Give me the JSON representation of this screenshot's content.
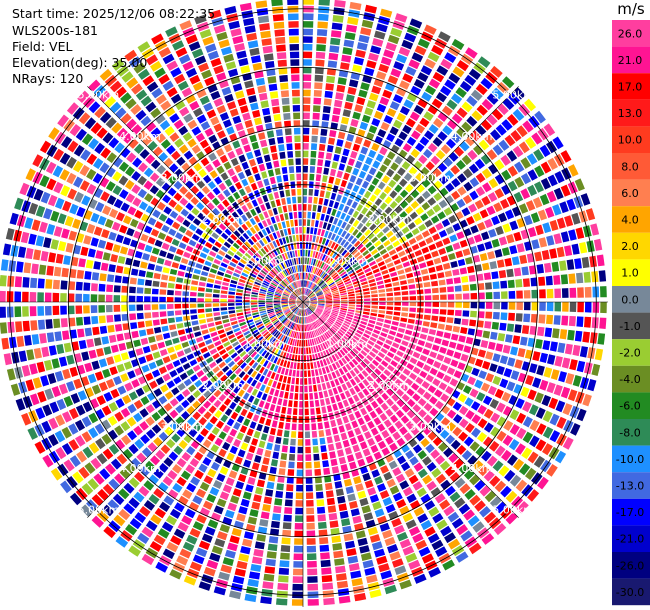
{
  "header": {
    "start_time": "Start time: 2025/12/06 08:22:35",
    "station": "WLS200s-181",
    "field": "Field: VEL",
    "elevation": "Elevation(deg): 35.00",
    "nrays": "NRays: 120"
  },
  "colorbar": {
    "unit": "m/s",
    "ticks": [
      "26.0",
      "21.0",
      "17.0",
      "13.0",
      "10.0",
      "8.0",
      "6.0",
      "4.0",
      "2.0",
      "1.0",
      "0.0",
      "-1.0",
      "-2.0",
      "-4.0",
      "-6.0",
      "-8.0",
      "-10.0",
      "-13.0",
      "-17.0",
      "-21.0",
      "-26.0",
      "-30.0"
    ],
    "colors": [
      "#ff3e9f",
      "#ff1493",
      "#ff0000",
      "#ff1a1a",
      "#ff3b1f",
      "#ff5a36",
      "#ff7f50",
      "#ffa500",
      "#ffd700",
      "#ffff00",
      "#778899",
      "#555555",
      "#9acd32",
      "#6b8e23",
      "#228b22",
      "#2e8b57",
      "#1e90ff",
      "#4169e1",
      "#0000ff",
      "#0000cd",
      "#000080",
      "#191970"
    ]
  },
  "chart_data": {
    "type": "heatmap",
    "projection": "polar PPI",
    "field": "VEL",
    "units": "m/s",
    "elevation_deg": 35.0,
    "nrays": 120,
    "range_rings_km": [
      1.0,
      2.0,
      3.0,
      4.0,
      5.0
    ],
    "ring_labels": [
      "1.00km",
      "2.00km",
      "3.00km",
      "4.00km",
      "5.00km"
    ],
    "max_range_km": 5.2,
    "value_range": [
      -30.0,
      26.0
    ],
    "coherent_sectors": [
      {
        "az_start_deg": 30,
        "az_end_deg": 60,
        "range_km": [
          1.4,
          3.1
        ],
        "velocity_ms": [
          -8,
          2
        ]
      },
      {
        "az_start_deg": 60,
        "az_end_deg": 100,
        "range_km": [
          0.4,
          2.6
        ],
        "velocity_ms": [
          4,
          21
        ]
      },
      {
        "az_start_deg": 100,
        "az_end_deg": 170,
        "range_km": [
          0.3,
          3.0
        ],
        "velocity_ms": [
          17,
          26
        ]
      },
      {
        "az_start_deg": 170,
        "az_end_deg": 200,
        "range_km": [
          0.4,
          2.2
        ],
        "velocity_ms": [
          13,
          21
        ]
      },
      {
        "az_start_deg": 20,
        "az_end_deg": 40,
        "range_km": [
          1.2,
          2.8
        ],
        "velocity_ms": [
          -17,
          -10
        ]
      }
    ]
  }
}
